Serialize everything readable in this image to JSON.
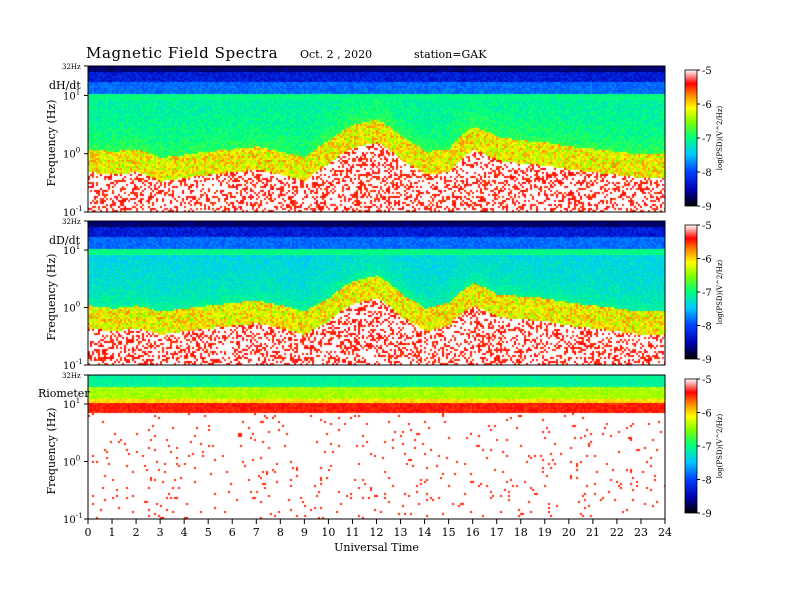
{
  "header": {
    "title": "Magnetic  Field  Spectra",
    "date": "Oct. 2  , 2020",
    "station": "station=GAK"
  },
  "chart_data": [
    {
      "type": "heatmap",
      "panel_label": "dH/dt",
      "ylabel": "Frequency  (Hz)",
      "y_scale": "log",
      "ylim_hz": [
        0.1,
        32
      ],
      "y_ticks": [
        {
          "value": 32,
          "label": "32Hz"
        },
        {
          "value": 10,
          "label": "10",
          "exp": "1"
        },
        {
          "value": 1,
          "label": "10",
          "exp": "0"
        },
        {
          "value": 0.1,
          "label": "10",
          "exp": "-1"
        }
      ],
      "xlim": [
        0,
        24
      ],
      "colorbar": {
        "label": "log(PSD)(V^2/Hz)",
        "range": [
          -9,
          -5
        ],
        "ticks": [
          -5,
          -6,
          -7,
          -8,
          -9
        ]
      },
      "noise_floor_hz_by_hour": [
        0.5,
        0.45,
        0.5,
        0.35,
        0.4,
        0.45,
        0.5,
        0.55,
        0.45,
        0.35,
        0.7,
        1.3,
        1.6,
        0.8,
        0.45,
        0.5,
        1.2,
        0.8,
        0.7,
        0.65,
        0.55,
        0.5,
        0.45,
        0.4,
        0.4
      ]
    },
    {
      "type": "heatmap",
      "panel_label": "dD/dt",
      "ylabel": "Frequency  (Hz)",
      "y_scale": "log",
      "ylim_hz": [
        0.1,
        32
      ],
      "y_ticks": [
        {
          "value": 32,
          "label": "32Hz"
        },
        {
          "value": 10,
          "label": "10",
          "exp": "1"
        },
        {
          "value": 1,
          "label": "10",
          "exp": "0"
        },
        {
          "value": 0.1,
          "label": "10",
          "exp": "-1"
        }
      ],
      "xlim": [
        0,
        24
      ],
      "colorbar": {
        "label": "log(PSD)(V^2/Hz)",
        "range": [
          -9,
          -5
        ],
        "ticks": [
          -5,
          -6,
          -7,
          -8,
          -9
        ]
      },
      "noise_floor_hz_by_hour": [
        0.45,
        0.4,
        0.45,
        0.35,
        0.4,
        0.45,
        0.5,
        0.55,
        0.45,
        0.35,
        0.6,
        1.2,
        1.5,
        0.7,
        0.4,
        0.5,
        1.1,
        0.7,
        0.65,
        0.6,
        0.5,
        0.45,
        0.4,
        0.35,
        0.35
      ]
    },
    {
      "type": "heatmap",
      "panel_label": "Riometer",
      "ylabel": "Frequency  (Hz)",
      "y_scale": "log",
      "ylim_hz": [
        0.1,
        32
      ],
      "y_ticks": [
        {
          "value": 32,
          "label": "32Hz"
        },
        {
          "value": 10,
          "label": "10",
          "exp": "1"
        },
        {
          "value": 1,
          "label": "10",
          "exp": "0"
        },
        {
          "value": 0.1,
          "label": "10",
          "exp": "-1"
        }
      ],
      "xlim": [
        0,
        24
      ],
      "colorbar": {
        "label": "log(PSD)(V^2/Hz)",
        "range": [
          -9,
          -5
        ],
        "ticks": [
          -5,
          -6,
          -7,
          -8,
          -9
        ]
      }
    }
  ],
  "x_axis": {
    "label": "Universal Time",
    "ticks": [
      0,
      1,
      2,
      3,
      4,
      5,
      6,
      7,
      8,
      9,
      10,
      11,
      12,
      13,
      14,
      15,
      16,
      17,
      18,
      19,
      20,
      21,
      22,
      23,
      24
    ]
  }
}
